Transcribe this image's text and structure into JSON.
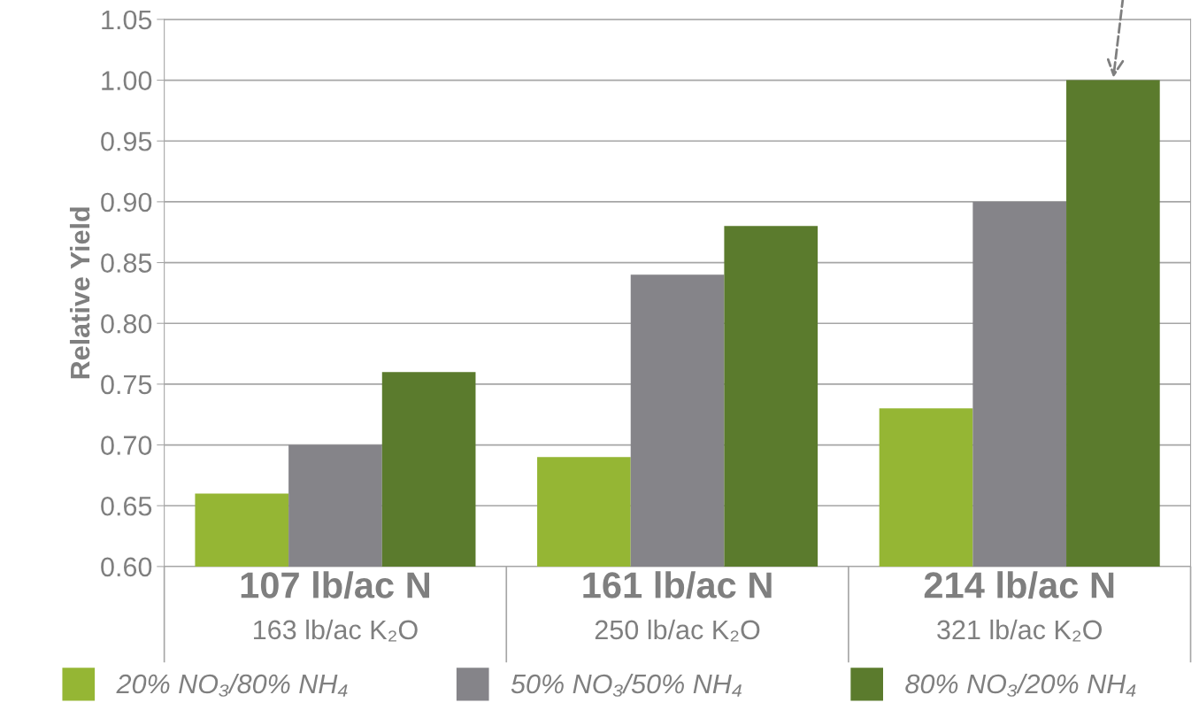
{
  "chart_data": {
    "type": "bar",
    "ylabel": "Relative Yield",
    "categories": [
      "107 lb/ac N\n163 lb/ac K₂O",
      "161 lb/ac N\n250 lb/ac K₂O",
      "214 lb/ac N\n321 lb/ac K₂O"
    ],
    "series": [
      {
        "name": "20% NO₃/80% NH₄",
        "color": "#95b634",
        "values": [
          0.66,
          0.69,
          0.73
        ]
      },
      {
        "name": "50% NO₃/50% NH₄",
        "color": "#858489",
        "values": [
          0.7,
          0.84,
          0.9
        ]
      },
      {
        "name": "80% NO₃/20% NH₄",
        "color": "#5b7b2d",
        "values": [
          0.76,
          0.88,
          1.0
        ]
      }
    ],
    "ylim": [
      0.6,
      1.05
    ],
    "yticks": [
      {
        "value": 0.6,
        "label": "0.60"
      },
      {
        "value": 0.65,
        "label": "0.65"
      },
      {
        "value": 0.7,
        "label": "0.70"
      },
      {
        "value": 0.75,
        "label": "0.75"
      },
      {
        "value": 0.8,
        "label": "0.80"
      },
      {
        "value": 0.85,
        "label": "0.85"
      },
      {
        "value": 0.9,
        "label": "0.90"
      },
      {
        "value": 0.95,
        "label": "0.95"
      },
      {
        "value": 1.0,
        "label": "1.00"
      },
      {
        "value": 1.05,
        "label": "1.05"
      }
    ],
    "grid": "y",
    "legend": "bottom"
  }
}
